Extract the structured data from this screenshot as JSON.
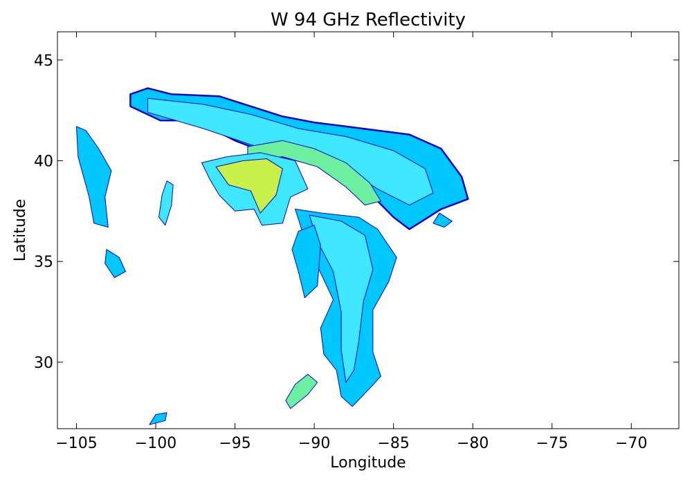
{
  "chart_data": {
    "type": "heatmap",
    "title": "W 94 GHz Reflectivity",
    "xlabel": "Longitude",
    "ylabel": "Latitude",
    "xlim": [
      -106.2,
      -67.0
    ],
    "ylim": [
      26.7,
      46.4
    ],
    "xticks": [
      {
        "value": -105,
        "label": "−105"
      },
      {
        "value": -100,
        "label": "−100"
      },
      {
        "value": -95,
        "label": "−95"
      },
      {
        "value": -90,
        "label": "−90"
      },
      {
        "value": -85,
        "label": "−85"
      },
      {
        "value": -80,
        "label": "−80"
      },
      {
        "value": -75,
        "label": "−75"
      },
      {
        "value": -70,
        "label": "−70"
      }
    ],
    "yticks": [
      {
        "value": 30,
        "label": "30"
      },
      {
        "value": 35,
        "label": "35"
      },
      {
        "value": 40,
        "label": "40"
      },
      {
        "value": 45,
        "label": "45"
      }
    ],
    "grid": false,
    "legend": "none",
    "colors": {
      "low": "#0000cc",
      "mid_low": "#0a5cff",
      "mid": "#00c8ff",
      "mid_high": "#40e8ff",
      "high": "#6cf0a0",
      "peak": "#c8f048"
    },
    "regions": [
      {
        "name": "northern-band",
        "color": "mid",
        "outline": [
          [
            -101.6,
            43.3
          ],
          [
            -100.5,
            43.6
          ],
          [
            -99,
            43.3
          ],
          [
            -96,
            43.2
          ],
          [
            -94,
            42.7
          ],
          [
            -92,
            42.2
          ],
          [
            -90,
            41.9
          ],
          [
            -88,
            41.7
          ],
          [
            -86,
            41.5
          ],
          [
            -84,
            41.3
          ],
          [
            -82,
            40.6
          ],
          [
            -80.7,
            39.2
          ],
          [
            -80.3,
            38.1
          ],
          [
            -82,
            37.6
          ],
          [
            -83.2,
            37
          ],
          [
            -84,
            36.6
          ],
          [
            -85,
            37.2
          ],
          [
            -86,
            38
          ],
          [
            -87,
            38.6
          ],
          [
            -88.5,
            39.6
          ],
          [
            -90.5,
            39.9
          ],
          [
            -93,
            40.4
          ],
          [
            -95,
            41
          ],
          [
            -96.5,
            41.6
          ],
          [
            -98,
            42
          ],
          [
            -99.7,
            42
          ],
          [
            -101.6,
            42.7
          ]
        ]
      },
      {
        "name": "northern-band-inner",
        "color": "mid_high",
        "outline": [
          [
            -100.5,
            43.1
          ],
          [
            -97,
            42.8
          ],
          [
            -94,
            42.3
          ],
          [
            -91,
            41.6
          ],
          [
            -88,
            41.2
          ],
          [
            -85,
            40.5
          ],
          [
            -83,
            39.6
          ],
          [
            -82.5,
            38.4
          ],
          [
            -84,
            37.8
          ],
          [
            -86,
            38.6
          ],
          [
            -88,
            39.6
          ],
          [
            -91,
            40.1
          ],
          [
            -94,
            40.8
          ],
          [
            -97,
            41.6
          ],
          [
            -100.5,
            42.4
          ]
        ]
      },
      {
        "name": "arc-core",
        "color": "high",
        "outline": [
          [
            -94.2,
            40.7
          ],
          [
            -92,
            41
          ],
          [
            -90,
            40.6
          ],
          [
            -88,
            39.9
          ],
          [
            -86.5,
            38.9
          ],
          [
            -85.8,
            38
          ],
          [
            -86.8,
            37.8
          ],
          [
            -88,
            38.7
          ],
          [
            -89.8,
            39.7
          ],
          [
            -92,
            40.2
          ],
          [
            -94.2,
            40
          ]
        ]
      },
      {
        "name": "central-tail",
        "color": "mid",
        "outline": [
          [
            -91.2,
            37.6
          ],
          [
            -89.5,
            37.4
          ],
          [
            -87.2,
            37.2
          ],
          [
            -86,
            36.6
          ],
          [
            -84.8,
            35.2
          ],
          [
            -85.3,
            34
          ],
          [
            -86.3,
            32.6
          ],
          [
            -86.3,
            30.5
          ],
          [
            -85.8,
            29.3
          ],
          [
            -86.5,
            28.7
          ],
          [
            -87.6,
            27.8
          ],
          [
            -88.3,
            28.3
          ],
          [
            -88.6,
            29.6
          ],
          [
            -89.4,
            30.4
          ],
          [
            -89.6,
            31.7
          ],
          [
            -88.8,
            33.1
          ],
          [
            -89.7,
            34.6
          ],
          [
            -90.6,
            36.1
          ]
        ]
      },
      {
        "name": "central-tail-core",
        "color": "mid_high",
        "outline": [
          [
            -90.3,
            37.3
          ],
          [
            -88.3,
            37
          ],
          [
            -86.8,
            36.3
          ],
          [
            -86.3,
            34.6
          ],
          [
            -86.9,
            33
          ],
          [
            -87.2,
            31
          ],
          [
            -87.5,
            29.6
          ],
          [
            -88,
            29
          ],
          [
            -88.3,
            30.6
          ],
          [
            -88.3,
            32.5
          ],
          [
            -88.8,
            34.5
          ],
          [
            -89.8,
            36
          ]
        ]
      },
      {
        "name": "western-cluster",
        "color": "mid_high",
        "outline": [
          [
            -97.1,
            39.9
          ],
          [
            -95.5,
            40.2
          ],
          [
            -93.4,
            40.4
          ],
          [
            -91.2,
            40
          ],
          [
            -90.4,
            38.6
          ],
          [
            -91.5,
            38.2
          ],
          [
            -92,
            36.9
          ],
          [
            -93.3,
            36.8
          ],
          [
            -93.8,
            37.6
          ],
          [
            -95,
            37.5
          ],
          [
            -96,
            38.3
          ],
          [
            -96.6,
            39.1
          ]
        ]
      },
      {
        "name": "western-cluster-core",
        "color": "peak",
        "outline": [
          [
            -96.2,
            39.7
          ],
          [
            -94.5,
            40
          ],
          [
            -93,
            40.1
          ],
          [
            -92,
            39.6
          ],
          [
            -92.4,
            38.3
          ],
          [
            -93.4,
            37.4
          ],
          [
            -94,
            38.5
          ],
          [
            -95.4,
            38.8
          ]
        ]
      },
      {
        "name": "south-cell",
        "color": "high",
        "outline": [
          [
            -91.5,
            27.7
          ],
          [
            -90.4,
            28.4
          ],
          [
            -89.8,
            29
          ],
          [
            -90.4,
            29.4
          ],
          [
            -91.2,
            28.9
          ],
          [
            -91.8,
            28.1
          ]
        ]
      },
      {
        "name": "inner-cells",
        "color": "mid",
        "outline": [
          [
            -91,
            36.5
          ],
          [
            -90,
            36.8
          ],
          [
            -89.6,
            35.8
          ],
          [
            -89.8,
            33.8
          ],
          [
            -90.6,
            33.2
          ],
          [
            -91,
            34.5
          ],
          [
            -91.4,
            35.6
          ]
        ]
      },
      {
        "name": "west-band",
        "color": "mid",
        "outline": [
          [
            -105,
            41.7
          ],
          [
            -104.4,
            41.5
          ],
          [
            -103.6,
            40.6
          ],
          [
            -102.8,
            39.5
          ],
          [
            -103.2,
            38.2
          ],
          [
            -103,
            36.7
          ],
          [
            -103.9,
            36.9
          ],
          [
            -104.2,
            38.2
          ],
          [
            -104.9,
            40.2
          ]
        ]
      },
      {
        "name": "sw-cell",
        "color": "mid",
        "outline": [
          [
            -103.1,
            35.6
          ],
          [
            -102.3,
            35.2
          ],
          [
            -101.9,
            34.5
          ],
          [
            -102.6,
            34.2
          ],
          [
            -103.2,
            34.9
          ]
        ]
      },
      {
        "name": "small-cell-a",
        "color": "mid_high",
        "outline": [
          [
            -99.3,
            39
          ],
          [
            -98.9,
            38.8
          ],
          [
            -99,
            37.8
          ],
          [
            -99.4,
            36.8
          ],
          [
            -99.8,
            37.2
          ],
          [
            -99.6,
            38.3
          ]
        ]
      },
      {
        "name": "small-cell-b",
        "color": "mid",
        "outline": [
          [
            -100,
            27.4
          ],
          [
            -99.3,
            27.5
          ],
          [
            -99.4,
            27.1
          ],
          [
            -100.4,
            26.9
          ]
        ]
      },
      {
        "name": "east-edge-cell",
        "color": "mid",
        "outline": [
          [
            -82.1,
            37.4
          ],
          [
            -81.3,
            37
          ],
          [
            -81.8,
            36.7
          ],
          [
            -82.5,
            36.9
          ]
        ]
      }
    ]
  }
}
